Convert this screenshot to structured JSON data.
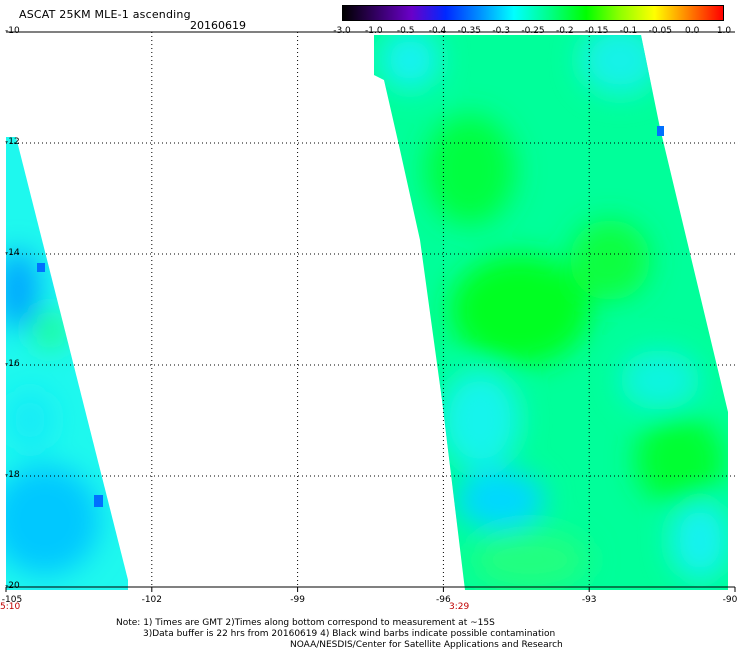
{
  "header": {
    "title": "ASCAT 25KM MLE-1 ascending",
    "date": "20160619"
  },
  "colorbar": {
    "labels": [
      "-3.0",
      "-1.0",
      "-0.5",
      "-0.4",
      "-0.35",
      "-0.3",
      "-0.25",
      "-0.2",
      "-0.15",
      "-0.1",
      "-0.05",
      "0.0",
      "1.0"
    ]
  },
  "axes": {
    "x_ticks": [
      "-105",
      "-102",
      "-99",
      "-96",
      "-93",
      "-90"
    ],
    "y_ticks": [
      "-10",
      "-12",
      "-14",
      "-16",
      "-18",
      "-20"
    ],
    "lon_range": [
      -105,
      -90
    ],
    "lat_range": [
      -20,
      -10
    ],
    "grid": "dotted"
  },
  "times": {
    "left": "5:10",
    "right": "3:29"
  },
  "notes": {
    "line1": "Note: 1) Times are GMT 2)Times along bottom correspond to measurement at ~15S",
    "line2": "3)Data buffer is 22 hrs from 20160619 4) Black wind barbs indicate possible contamination",
    "line3": "NOAA/NESDIS/Center for Satellite Applications and Research"
  },
  "colors": {
    "cyan": "#00ffff",
    "green": "#00ff00",
    "light_blue": "#00c8ff",
    "blue": "#0070ff"
  }
}
